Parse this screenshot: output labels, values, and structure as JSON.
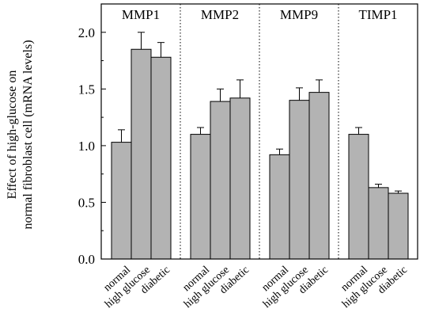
{
  "chart_data": {
    "type": "bar",
    "ylabel": [
      "Effect of high-glucose on",
      "normal fibroblast cell (mRNA levels)"
    ],
    "ylim": [
      0,
      2.25
    ],
    "yticks": [
      0.0,
      0.5,
      1.0,
      1.5,
      2.0
    ],
    "ytick_labels": [
      "0.0",
      "0.5",
      "1.0",
      "1.5",
      "2.0"
    ],
    "grid": false,
    "bar_color": "#b3b3b3",
    "categories": [
      "normal",
      "high glucose",
      "diabetic"
    ],
    "groups": [
      {
        "name": "MMP1",
        "values": [
          1.03,
          1.85,
          1.78
        ],
        "errors": [
          0.11,
          0.15,
          0.13
        ]
      },
      {
        "name": "MMP2",
        "values": [
          1.1,
          1.39,
          1.42
        ],
        "errors": [
          0.06,
          0.11,
          0.16
        ]
      },
      {
        "name": "MMP9",
        "values": [
          0.92,
          1.4,
          1.47
        ],
        "errors": [
          0.05,
          0.11,
          0.11
        ]
      },
      {
        "name": "TIMP1",
        "values": [
          1.1,
          0.63,
          0.58
        ],
        "errors": [
          0.06,
          0.03,
          0.02
        ]
      }
    ]
  }
}
